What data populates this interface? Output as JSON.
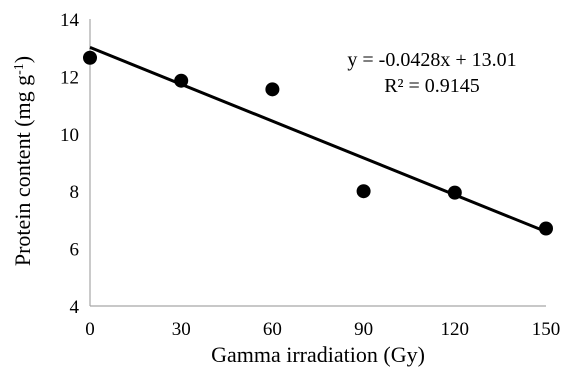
{
  "chart_data": {
    "type": "scatter",
    "xlabel": "Gamma irradiation (Gy)",
    "ylabel": "Protein content (mg g",
    "ylabel_sup": "-1",
    "ylabel_close": ")",
    "x_ticks": [
      "0",
      "30",
      "60",
      "90",
      "120",
      "150"
    ],
    "y_ticks": [
      "4",
      "6",
      "8",
      "10",
      "12",
      "14"
    ],
    "xlim": [
      0,
      150
    ],
    "ylim": [
      4,
      14
    ],
    "grid": false,
    "series": [
      {
        "x": [
          0,
          30,
          60,
          90,
          120,
          150
        ],
        "y": [
          12.65,
          11.85,
          11.55,
          8.0,
          7.95,
          6.7
        ]
      }
    ],
    "trendline": {
      "slope": -0.0428,
      "intercept": 13.01,
      "equation": "y = -0.0428x + 13.01",
      "r_squared": "R² = 0.9145"
    },
    "colors": {
      "marker": "#000000",
      "line": "#000000",
      "axis": "#a6a6a6"
    }
  }
}
